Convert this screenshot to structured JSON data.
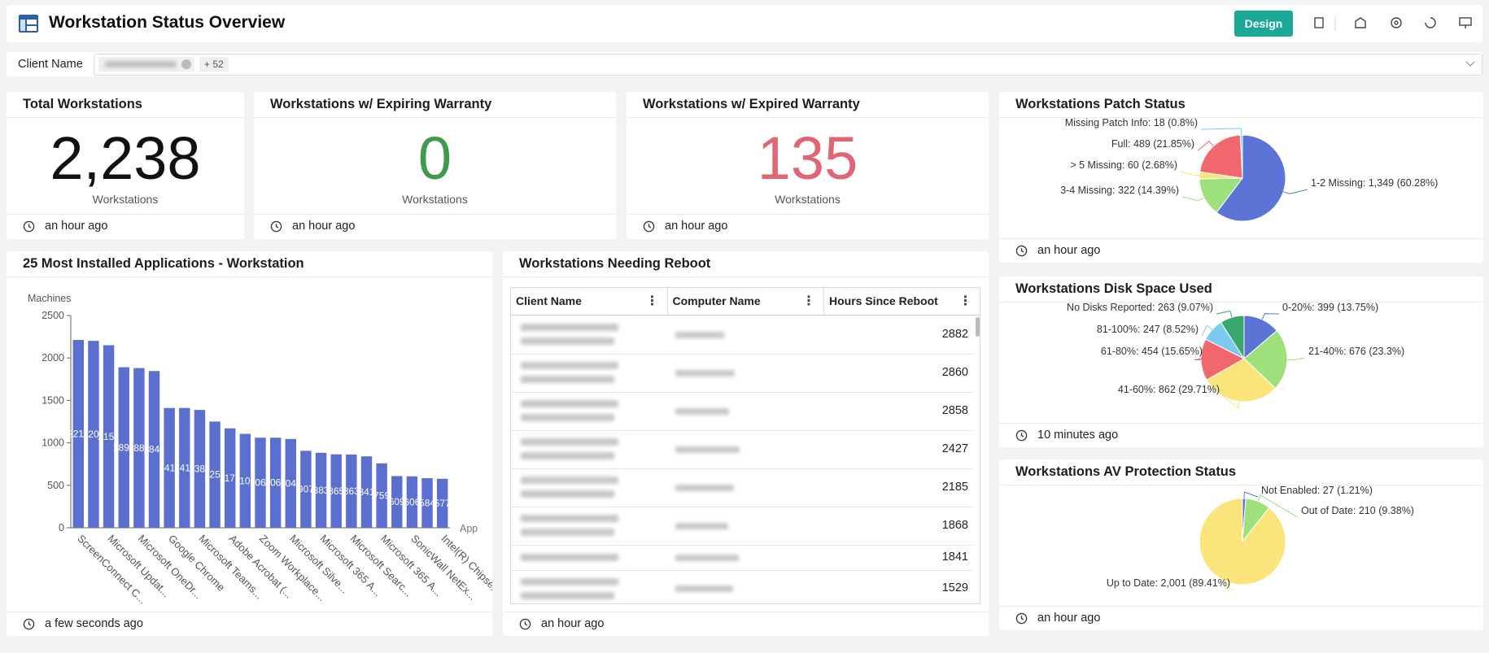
{
  "header": {
    "title": "Workstation Status Overview",
    "button": "Design"
  },
  "filter": {
    "label": "Client Name",
    "more": "+ 52"
  },
  "kpis": [
    {
      "title": "Total Workstations",
      "value": "2,238",
      "unit": "Workstations",
      "updated": "an hour ago",
      "color": "#111111"
    },
    {
      "title": "Workstations w/ Expiring Warranty",
      "value": 0,
      "unit": "Workstations",
      "updated": "an hour ago",
      "color": "#3f9a4c"
    },
    {
      "title": "Workstations w/ Expired Warranty",
      "value": 135,
      "unit": "Workstations",
      "updated": "an hour ago",
      "color": "#e06676"
    }
  ],
  "table": {
    "title": "Workstations Needing Reboot",
    "columns": [
      "Client Name",
      "Computer Name",
      "Hours Since Reboot"
    ],
    "hours": [
      2882,
      2860,
      2858,
      2427,
      2185,
      1868,
      1841,
      1529
    ],
    "updated": "an hour ago"
  },
  "chart_data": [
    {
      "type": "bar",
      "title": "25 Most Installed Applications - Workstation",
      "ylabel": "Machines",
      "xlabel": "App",
      "categories": [
        "ScreenConnect C...",
        null,
        "Microsoft Updat...",
        null,
        "Microsoft OneDr...",
        null,
        "Google Chrome",
        null,
        "Microsoft Teams...",
        null,
        "Adobe Acrobat (...",
        null,
        "Zoom Workplace...",
        null,
        "Microsoft Silve...",
        null,
        "Microsoft 365 A...",
        null,
        "Microsoft Searc...",
        null,
        "Microsoft 365 A...",
        null,
        "SonicWall NetEx...",
        null,
        "Intel(R) Chipse..."
      ],
      "values": [
        2212,
        2202,
        2150,
        1891,
        1881,
        1846,
        1411,
        1411,
        1388,
        1251,
        1171,
        1106,
        1061,
        1061,
        1046,
        907,
        883,
        865,
        863,
        841,
        759,
        609,
        606,
        584,
        577
      ],
      "color": "#5b6fce",
      "ylim": [
        0,
        2500
      ],
      "yticks": [
        0,
        500,
        1000,
        1500,
        2000,
        2500
      ],
      "grid": false,
      "updated": "a few seconds ago"
    },
    {
      "type": "pie",
      "title": "Workstations Patch Status",
      "values": [
        1349,
        322,
        60,
        489,
        18
      ],
      "value_labels": [
        "1-2 Missing: 1,349 (60.28%)",
        "3-4 Missing: 322 (14.39%)",
        "> 5 Missing: 60 (2.68%)",
        "Full: 489 (21.85%)",
        "Missing Patch Info: 18 (0.8%)"
      ],
      "colors": [
        "#5b74d6",
        "#9de07c",
        "#fce47c",
        "#f0686d",
        "#7ccaf0"
      ],
      "updated": "an hour ago"
    },
    {
      "type": "pie",
      "title": "Workstations Disk Space Used",
      "values": [
        399,
        676,
        862,
        454,
        247,
        263
      ],
      "value_labels": [
        "0-20%: 399 (13.75%)",
        "21-40%: 676 (23.3%)",
        "41-60%: 862 (29.71%)",
        "61-80%: 454 (15.65%)",
        "81-100%: 247 (8.52%)",
        "No Disks Reported: 263 (9.07%)"
      ],
      "colors": [
        "#5b74d6",
        "#9de07c",
        "#fce47c",
        "#f0686d",
        "#7ccaf0",
        "#3aa86e"
      ],
      "updated": "10 minutes ago"
    },
    {
      "type": "pie",
      "title": "Workstations AV Protection Status",
      "values": [
        27,
        210,
        2001
      ],
      "value_labels": [
        "Not Enabled: 27 (1.21%)",
        "Out of Date: 210 (9.38%)",
        "Up to Date: 2,001 (89.41%)"
      ],
      "colors": [
        "#5b74d6",
        "#9de07c",
        "#fce47c"
      ],
      "updated": "an hour ago"
    }
  ]
}
